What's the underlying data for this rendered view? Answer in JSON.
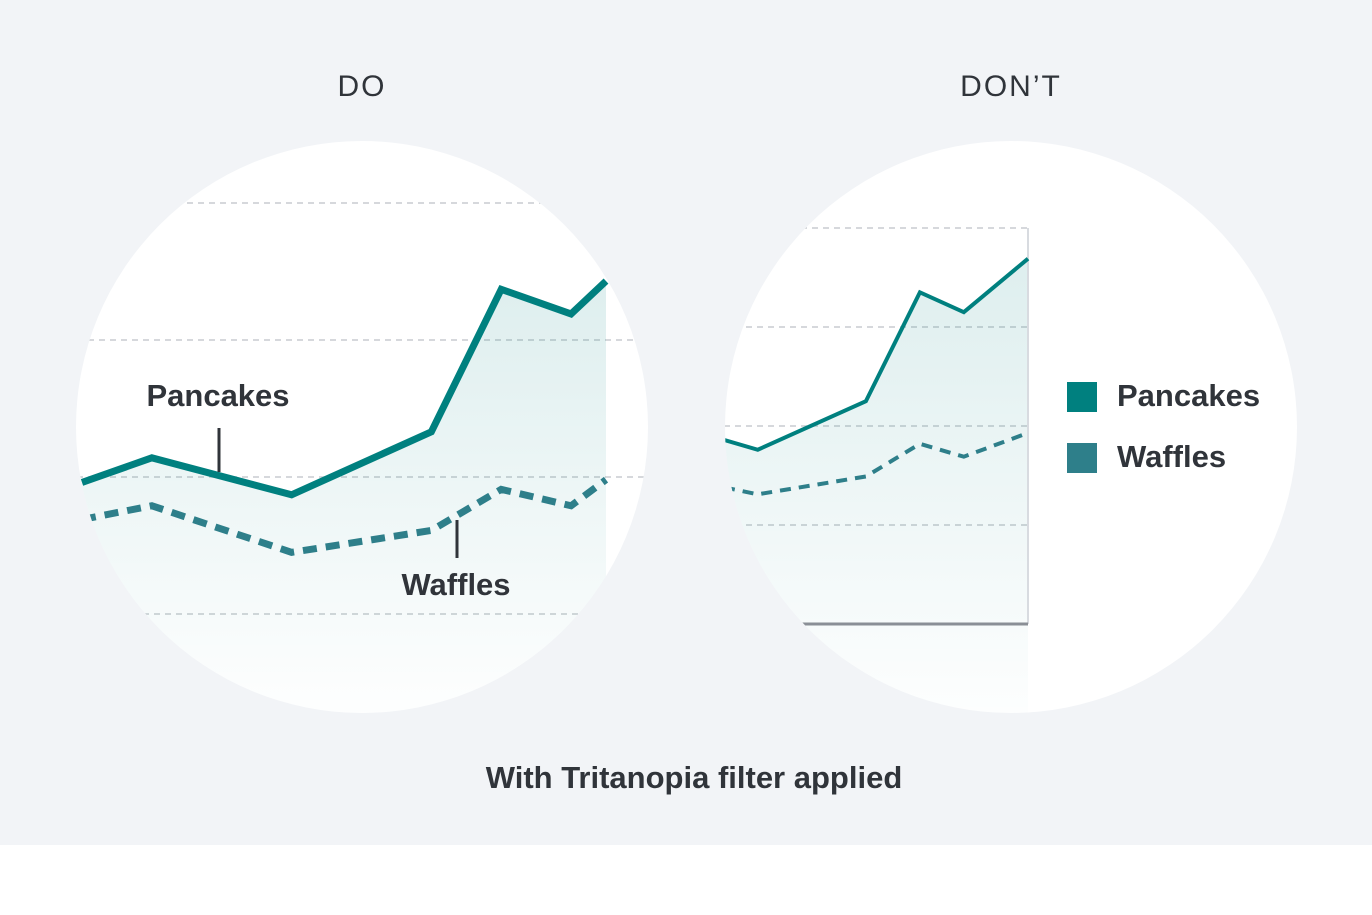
{
  "caption": "With Tritanopia filter applied",
  "chart_data": [
    {
      "type": "line",
      "title": "DO",
      "legend": "direct",
      "grid": true,
      "axis_lines": false,
      "x": [
        0,
        1,
        3,
        5,
        6,
        7,
        7.5
      ],
      "xlim": [
        0,
        7.5
      ],
      "ylim": [
        0,
        3
      ],
      "yticks": [
        0,
        1,
        2,
        3
      ],
      "series": [
        {
          "name": "Pancakes",
          "color": "#00807f",
          "dashed": false,
          "values": [
            0.96,
            1.14,
            0.87,
            1.33,
            2.37,
            2.19,
            2.43
          ]
        },
        {
          "name": "Waffles",
          "color": "#2e7f8a",
          "dashed": true,
          "values": [
            0.69,
            0.79,
            0.45,
            0.61,
            0.91,
            0.79,
            0.98
          ]
        }
      ]
    },
    {
      "type": "line",
      "title": "DON’T",
      "legend": "right",
      "grid": true,
      "axis_lines": true,
      "x": [
        0,
        1,
        4.2,
        5.8,
        7.1,
        9
      ],
      "xlim": [
        0,
        9
      ],
      "ylim": [
        0,
        4
      ],
      "yticks": [
        1,
        2,
        3,
        4
      ],
      "series": [
        {
          "name": "Pancakes",
          "color": "#00807f",
          "dashed": false,
          "values": [
            1.86,
            1.76,
            2.25,
            3.35,
            3.15,
            3.69
          ]
        },
        {
          "name": "Waffles",
          "color": "#2e7f8a",
          "dashed": true,
          "values": [
            1.38,
            1.31,
            1.49,
            1.82,
            1.69,
            1.93
          ]
        }
      ]
    }
  ]
}
